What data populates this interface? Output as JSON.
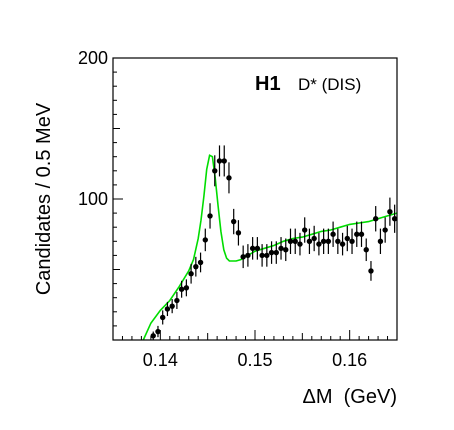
{
  "chart_data": {
    "type": "scatter",
    "brand": "H1",
    "subtitle": "D* (DIS)",
    "xlabel": "ΔM  (GeV)",
    "ylabel": "Candidates / 0.5 MeV",
    "xlim": [
      0.135,
      0.165
    ],
    "ylim": [
      0,
      200
    ],
    "x_ticks": [
      {
        "value": 0.14,
        "label": "0.14"
      },
      {
        "value": 0.15,
        "label": "0.15"
      },
      {
        "value": 0.16,
        "label": "0.16"
      }
    ],
    "y_ticks": [
      {
        "value": 100,
        "label": "100"
      },
      {
        "value": 200,
        "label": "200"
      }
    ],
    "grid": false,
    "legend": "none",
    "colors": {
      "points": "#000000",
      "fit": "#00dd00",
      "axes": "#000000"
    },
    "series": [
      {
        "kind": "data-points-with-errors",
        "x": [
          0.13925,
          0.13975,
          0.14025,
          0.14075,
          0.14125,
          0.14175,
          0.14225,
          0.14275,
          0.14325,
          0.14375,
          0.14425,
          0.14475,
          0.14525,
          0.14575,
          0.14625,
          0.14675,
          0.14725,
          0.14775,
          0.14825,
          0.14875,
          0.14925,
          0.14975,
          0.15025,
          0.15075,
          0.15125,
          0.15175,
          0.15225,
          0.15275,
          0.15325,
          0.15375,
          0.15425,
          0.15475,
          0.15525,
          0.15575,
          0.15625,
          0.15675,
          0.15725,
          0.15775,
          0.15825,
          0.15875,
          0.15925,
          0.15975,
          0.16025,
          0.16075,
          0.16125,
          0.16175,
          0.16225,
          0.16275,
          0.16325,
          0.16375,
          0.16425,
          0.16475
        ],
        "y": [
          3,
          6,
          16,
          22,
          24,
          28,
          36,
          37,
          47,
          52,
          55,
          71,
          88,
          120,
          127,
          127,
          115,
          84,
          76,
          59,
          60,
          65,
          65,
          60,
          60,
          62,
          62,
          65,
          64,
          70,
          70,
          68,
          78,
          70,
          72,
          68,
          70,
          70,
          75,
          70,
          68,
          72,
          70,
          75,
          75,
          64,
          49,
          86,
          70,
          78,
          91,
          86
        ],
        "err": [
          3,
          4,
          5,
          5,
          5,
          6,
          6,
          6,
          7,
          7,
          7,
          8,
          9,
          11,
          11,
          11,
          11,
          9,
          9,
          8,
          8,
          8,
          8,
          8,
          8,
          8,
          8,
          8,
          8,
          9,
          9,
          8,
          9,
          9,
          9,
          8,
          9,
          9,
          9,
          9,
          8,
          9,
          9,
          9,
          9,
          8,
          7,
          9,
          9,
          9,
          10,
          10
        ]
      },
      {
        "kind": "fit-curve",
        "x": [
          0.1382,
          0.139,
          0.14,
          0.141,
          0.142,
          0.143,
          0.1435,
          0.144,
          0.1443,
          0.1446,
          0.1449,
          0.1452,
          0.1455,
          0.1458,
          0.1461,
          0.1464,
          0.1467,
          0.147,
          0.1473,
          0.1476,
          0.148,
          0.1485,
          0.149,
          0.15,
          0.151,
          0.152,
          0.153,
          0.154,
          0.155,
          0.156,
          0.157,
          0.158,
          0.159,
          0.16,
          0.161,
          0.162,
          0.163,
          0.164,
          0.165
        ],
        "y": [
          0,
          12,
          21,
          28,
          38,
          49,
          57,
          72,
          85,
          102,
          121,
          131,
          130,
          115,
          95,
          77,
          64,
          58,
          56,
          56,
          56,
          57,
          59,
          63,
          65,
          67,
          70,
          72,
          73,
          75,
          77,
          78,
          80,
          82,
          83,
          84,
          86,
          88,
          90
        ]
      }
    ]
  }
}
